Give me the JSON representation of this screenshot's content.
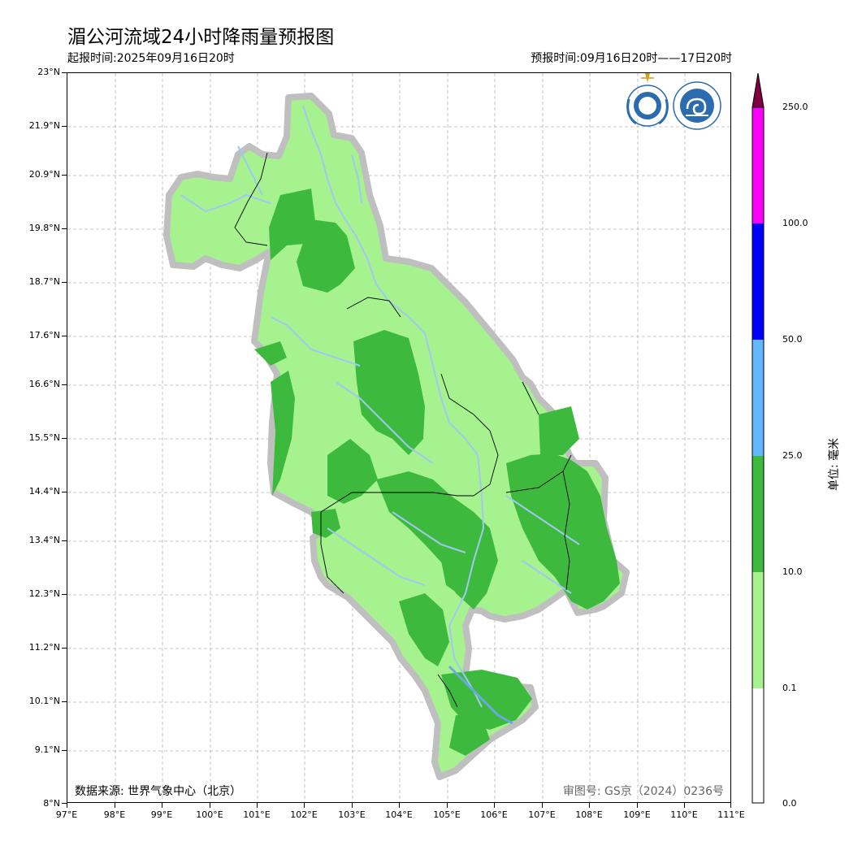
{
  "title": "湄公河流域24小时降雨量预报图",
  "issue_time": "起报时间:2025年09月16日20时",
  "forecast_time": "预报时间:09月16日20时——17日20时",
  "data_source": "数据来源: 世界气象中心（北京）",
  "review_number": "审图号: GS京（2024）0236号",
  "y_ticks": [
    "23°N",
    "21.9°N",
    "20.9°N",
    "19.8°N",
    "18.7°N",
    "17.6°N",
    "16.6°N",
    "15.5°N",
    "14.4°N",
    "13.4°N",
    "12.3°N",
    "11.2°N",
    "10.1°N",
    "9.1°N",
    "8°N"
  ],
  "x_ticks": [
    "97°E",
    "98°E",
    "99°E",
    "100°E",
    "101°E",
    "102°E",
    "103°E",
    "104°E",
    "105°E",
    "106°E",
    "107°E",
    "108°E",
    "109°E",
    "110°E",
    "111°E"
  ],
  "legend": {
    "unit": "单位: 毫米",
    "levels": [
      "250.0",
      "100.0",
      "50.0",
      "25.0",
      "10.0",
      "0.1",
      "0.0"
    ]
  },
  "colors": {
    "light_green": "#a6f28f",
    "dark_green": "#3dba3d",
    "sky_blue": "#61b8ff",
    "blue": "#0000fe",
    "magenta": "#fa00fa",
    "maroon": "#810040",
    "river": "#a0c8f0",
    "outline": "#bfbfbf"
  }
}
